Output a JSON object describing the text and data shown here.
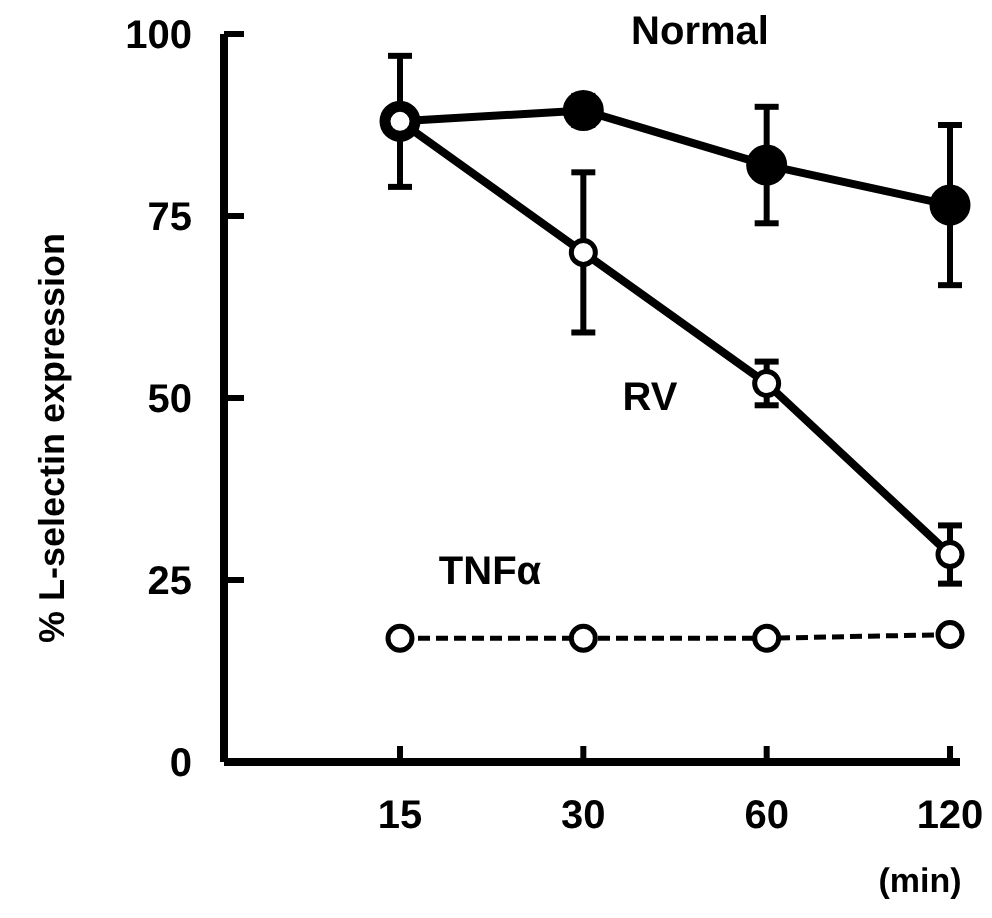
{
  "chart_data": {
    "type": "line",
    "ylabel": "% L-selectin expression",
    "xlabel": "(min)",
    "categories": [
      "15",
      "30",
      "60",
      "120"
    ],
    "ylim": [
      0,
      100
    ],
    "yticks": [
      0,
      25,
      50,
      75,
      100
    ],
    "marker": "circle",
    "series": [
      {
        "name": "Normal",
        "color": "#000000",
        "values": [
          88,
          89.5,
          82,
          76.5
        ],
        "errors": [
          9,
          2,
          8,
          11
        ]
      },
      {
        "name": "RV",
        "color": "#000000",
        "values": [
          88,
          70,
          52,
          28.5
        ],
        "errors": [
          null,
          11,
          3,
          4
        ]
      },
      {
        "name": "TNFα",
        "color": "#000000",
        "values": [
          17,
          17,
          17,
          17.5
        ],
        "line_style": "dashed"
      }
    ]
  }
}
